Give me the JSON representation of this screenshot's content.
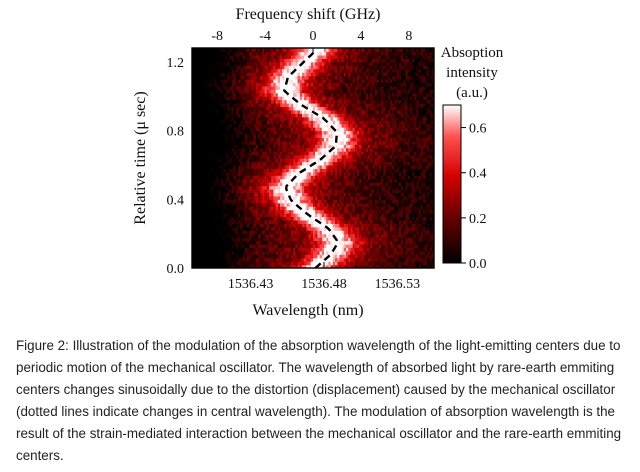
{
  "chart_data": {
    "type": "heatmap",
    "colormap": [
      "#000000",
      "#6b0000",
      "#d40000",
      "#ff5050",
      "#ffffff"
    ],
    "xlabel": "Wavelength (nm)",
    "x_ticks": [
      "1536.43",
      "1536.48",
      "1536.53"
    ],
    "xlim": [
      1536.39,
      1536.555
    ],
    "top_xlabel": "Frequency shift (GHz)",
    "top_ticks": [
      "-8",
      "-4",
      "0",
      "4",
      "8"
    ],
    "top_lim": [
      -10.1,
      10.1
    ],
    "ylabel": "Relative time (μ sec)",
    "y_ticks": [
      "0.0",
      "0.4",
      "0.8",
      "1.2"
    ],
    "ylim": [
      0.0,
      1.28
    ],
    "colorbar": {
      "title": [
        "Absoption",
        "intensity",
        "(a.u.)"
      ],
      "ticks": [
        "0.0",
        "0.2",
        "0.4",
        "0.6"
      ],
      "range": [
        0.0,
        0.7
      ]
    },
    "center_line": {
      "style": "dashed",
      "t": [
        0.0,
        0.08,
        0.15,
        0.23,
        0.31,
        0.39,
        0.47,
        0.55,
        0.63,
        0.71,
        0.79,
        0.87,
        0.95,
        1.03,
        1.11,
        1.19,
        1.27
      ],
      "shift_ghz": [
        0.2,
        1.5,
        2.1,
        1.3,
        -0.4,
        -1.8,
        -2.3,
        -1.2,
        0.6,
        1.9,
        2.0,
        0.9,
        -1.0,
        -2.4,
        -2.1,
        -0.9,
        0.3
      ]
    }
  },
  "caption": "Figure 2: Illustration of the modulation of the absorption wavelength of the light-emitting centers due to periodic motion of the mechanical oscillator. The wavelength of absorbed light by rare-earth emmiting centers changes sinusoidally due to the distortion (displacement) caused by the mechanical oscillator (dotted lines indicate changes in central wavelength). The modulation of absorption wavelength is the result of the strain-mediated interaction between the mechanical oscillator and the rare-earth emmiting centers."
}
